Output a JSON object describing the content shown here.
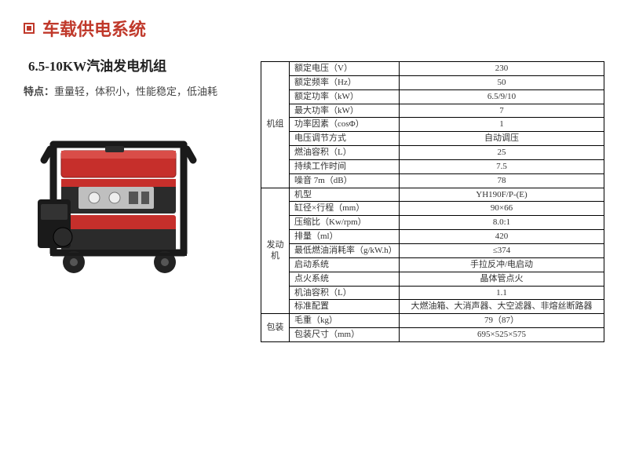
{
  "header": {
    "title": "车载供电系统",
    "title_color": "#c0392b"
  },
  "left": {
    "subtitle": "6.5-10KW汽油发电机组",
    "features_label": "特点：",
    "features_text": "重量轻，体积小，性能稳定，低油耗"
  },
  "table": {
    "border_color": "#000000",
    "font_size": 11,
    "sections": [
      {
        "category": "机组",
        "rows": [
          {
            "param": "额定电压（V）",
            "value": "230"
          },
          {
            "param": "额定频率（Hz）",
            "value": "50"
          },
          {
            "param": "额定功率（kW）",
            "value": "6.5/9/10"
          },
          {
            "param": "最大功率（kW）",
            "value": "7"
          },
          {
            "param": "功率因素（cosΦ）",
            "value": "1"
          },
          {
            "param": "电压调节方式",
            "value": "自动调压"
          },
          {
            "param": "燃油容积（L）",
            "value": "25"
          },
          {
            "param": "持续工作时间",
            "value": "7.5"
          },
          {
            "param": "噪音 7m（dB）",
            "value": "78"
          }
        ]
      },
      {
        "category": "发动机",
        "rows": [
          {
            "param": "机型",
            "value": "YH190F/P-(E)"
          },
          {
            "param": "缸径×行程（mm）",
            "value": "90×66"
          },
          {
            "param": "压缩比（Kw/rpm）",
            "value": "8.0:1"
          },
          {
            "param": "排量（ml）",
            "value": "420"
          },
          {
            "param": "最低燃油消耗率（g/kW.h）",
            "value": "≤374"
          },
          {
            "param": "启动系统",
            "value": "手拉反冲/电启动"
          },
          {
            "param": "点火系统",
            "value": "晶体管点火"
          },
          {
            "param": "机油容积（L）",
            "value": "1.1"
          },
          {
            "param": "标准配置",
            "value": "大燃油箱、大消声器、大空滤器、非熔丝断路器"
          }
        ]
      },
      {
        "category": "包装",
        "rows": [
          {
            "param": "毛重（kg）",
            "value": "79（87）"
          },
          {
            "param": "包装尺寸（mm）",
            "value": "695×525×575"
          }
        ]
      }
    ]
  },
  "generator_colors": {
    "frame": "#1a1a1a",
    "body_red": "#c62f2b",
    "body_dark": "#2b2b2b",
    "panel": "#bfbfbf",
    "wheel": "#222222"
  }
}
